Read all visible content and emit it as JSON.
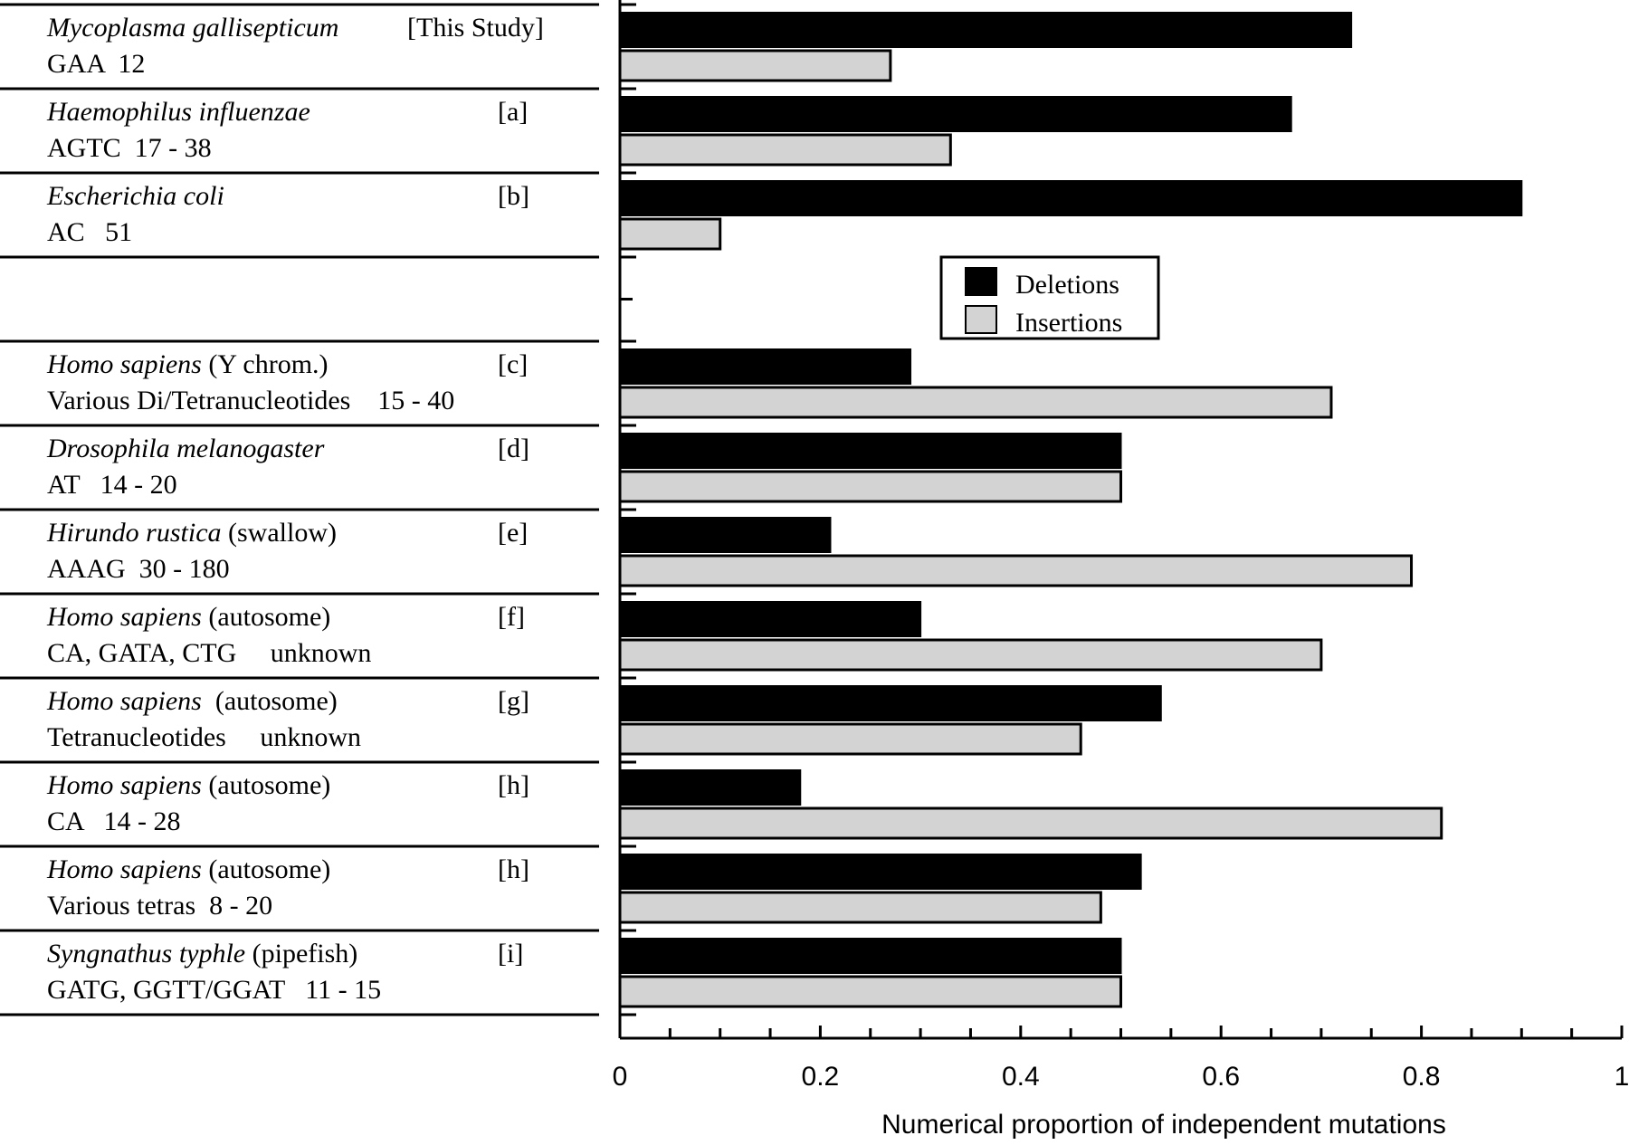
{
  "chart_data": {
    "type": "bar",
    "orientation": "horizontal",
    "title": "",
    "xlabel": "Numerical proportion of independent mutations",
    "ylabel": "",
    "xlim": [
      0,
      1
    ],
    "x_ticks": [
      "0",
      "0.2",
      "0.4",
      "0.6",
      "0.8",
      "1"
    ],
    "legend": {
      "placement": "right-center",
      "entries": [
        {
          "name": "Deletions",
          "color": "#000000"
        },
        {
          "name": "Insertions",
          "color": "#d3d3d3"
        }
      ]
    },
    "rows": [
      {
        "species": "Mycoplasma gallisepticum",
        "qualifier": "",
        "ref": "[This Study]",
        "repeat": "GAA  12",
        "deletions": 0.73,
        "insertions": 0.27
      },
      {
        "species": "Haemophilus influenzae",
        "qualifier": "",
        "ref": "[a]",
        "repeat": "AGTC  17 - 38",
        "deletions": 0.67,
        "insertions": 0.33
      },
      {
        "species": "Escherichia coli",
        "qualifier": "",
        "ref": "[b]",
        "repeat": "AC   51",
        "deletions": 0.9,
        "insertions": 0.1
      },
      {
        "gap": true
      },
      {
        "species": "Homo sapiens",
        "qualifier": " (Y chrom.)",
        "ref": "[c]",
        "repeat": "Various Di/Tetranucleotides    15 - 40",
        "deletions": 0.29,
        "insertions": 0.71
      },
      {
        "species": "Drosophila melanogaster",
        "qualifier": "",
        "ref": "[d]",
        "repeat": "AT   14 - 20",
        "deletions": 0.5,
        "insertions": 0.5
      },
      {
        "species": "Hirundo rustica",
        "qualifier": " (swallow)",
        "ref": "[e]",
        "repeat": "AAAG  30 - 180",
        "deletions": 0.21,
        "insertions": 0.79
      },
      {
        "species": "Homo sapiens",
        "qualifier": " (autosome)",
        "ref": "[f]",
        "repeat": "CA, GATA, CTG     unknown",
        "deletions": 0.3,
        "insertions": 0.7
      },
      {
        "species": "Homo sapiens",
        "qualifier": "  (autosome)",
        "ref": "[g]",
        "repeat": "Tetranucleotides     unknown",
        "deletions": 0.54,
        "insertions": 0.46
      },
      {
        "species": "Homo sapiens",
        "qualifier": " (autosome)",
        "ref": "[h]",
        "repeat": "CA   14 - 28",
        "deletions": 0.18,
        "insertions": 0.82
      },
      {
        "species": "Homo sapiens",
        "qualifier": " (autosome)",
        "ref": "[h]",
        "repeat": "Various tetras  8 - 20",
        "deletions": 0.52,
        "insertions": 0.48
      },
      {
        "species": "Syngnathus typhle",
        "qualifier": " (pipefish)",
        "ref": "[i]",
        "repeat": "GATG, GGTT/GGAT   11 - 15",
        "deletions": 0.5,
        "insertions": 0.5
      }
    ]
  }
}
